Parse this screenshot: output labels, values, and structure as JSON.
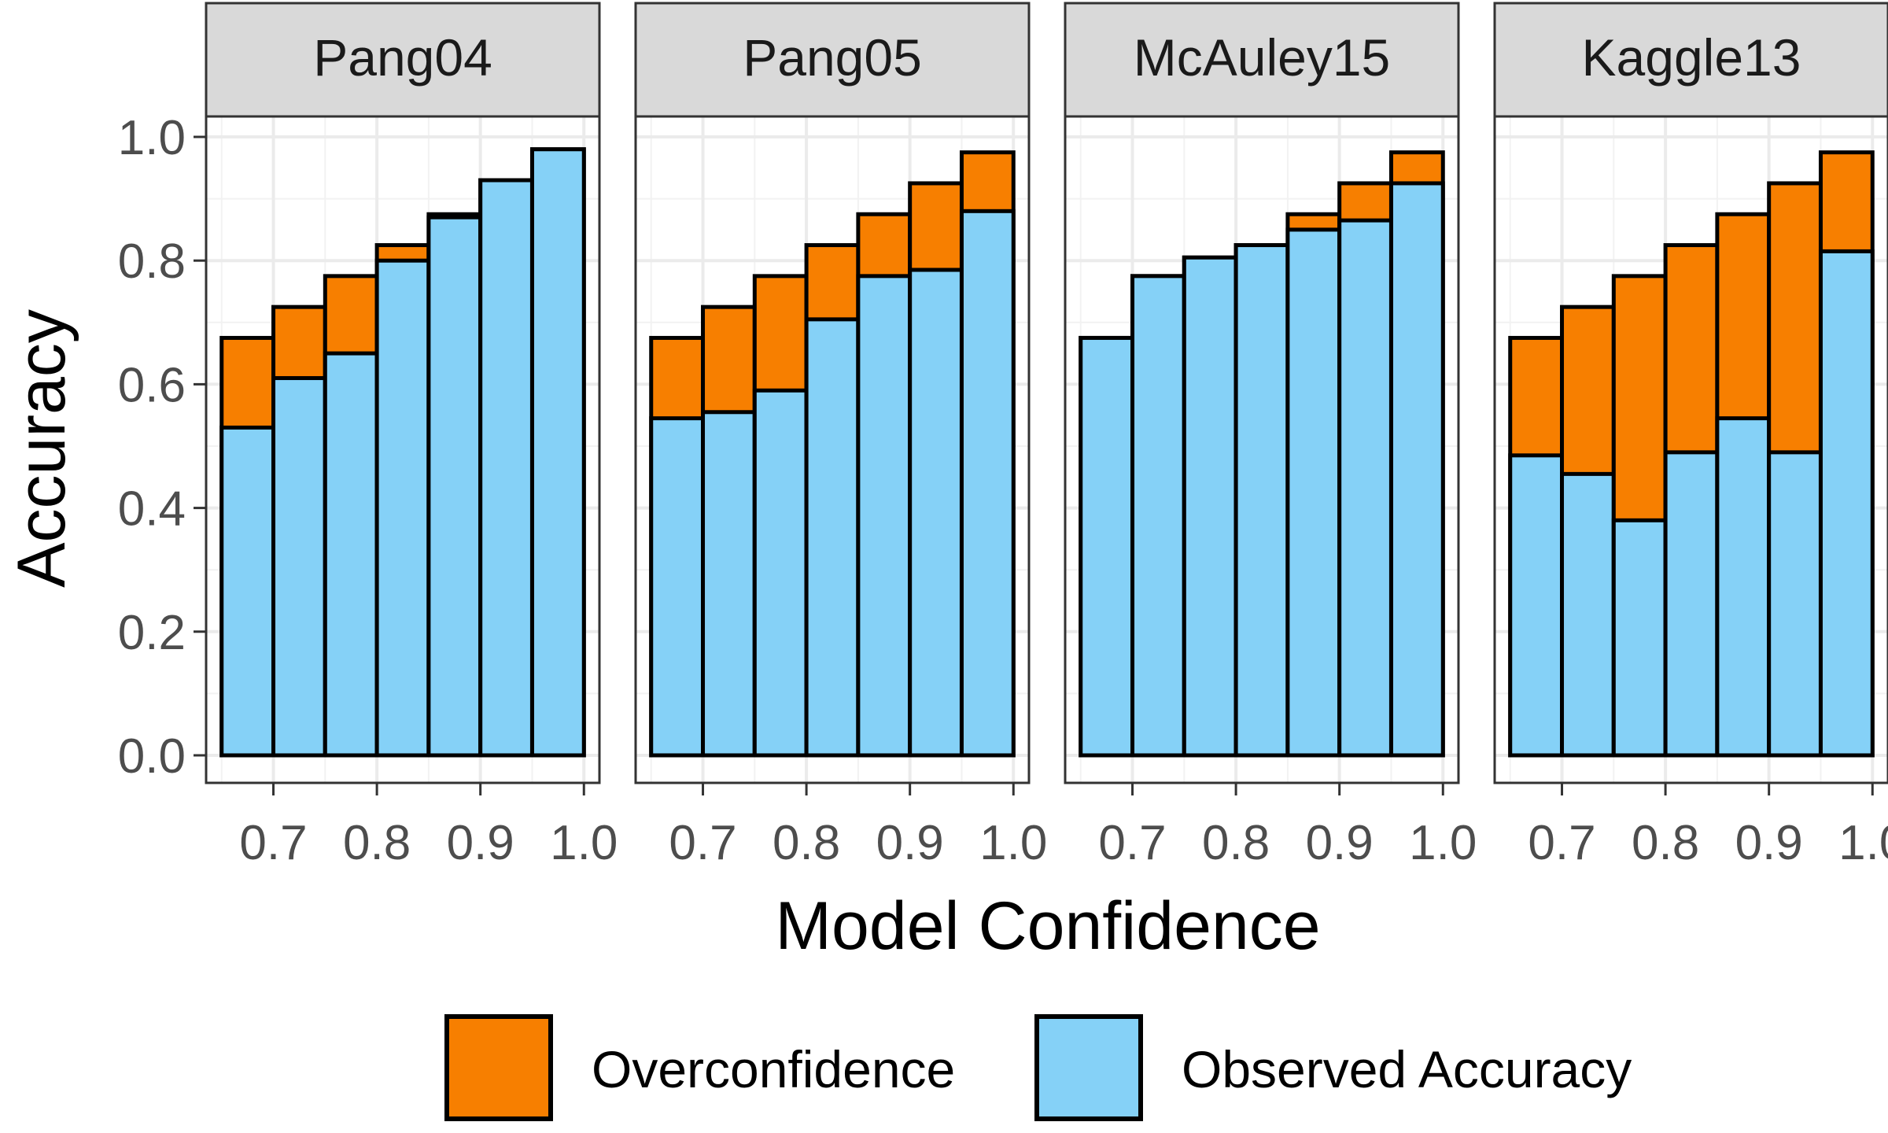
{
  "chart_data": {
    "type": "bar",
    "xlabel": "Model Confidence",
    "ylabel": "Accuracy",
    "ylim": [
      0,
      1.05
    ],
    "xlim": [
      0.635,
      1.015
    ],
    "x_ticks": [
      0.7,
      0.8,
      0.9,
      1.0
    ],
    "x_tick_labels": [
      "0.7",
      "0.8",
      "0.9",
      "1.0"
    ],
    "y_ticks": [
      0.0,
      0.2,
      0.4,
      0.6,
      0.8,
      1.0
    ],
    "y_tick_labels": [
      "0.0",
      "0.2",
      "0.4",
      "0.6",
      "0.8",
      "1.0"
    ],
    "grid": true,
    "legend_position": "bottom",
    "legend": [
      {
        "key": "over",
        "label": "Overconfidence",
        "color": "#F77F00"
      },
      {
        "key": "obs",
        "label": "Observed Accuracy",
        "color": "#85D1F7"
      }
    ],
    "bin_width": 0.05,
    "bin_centers": [
      0.675,
      0.725,
      0.775,
      0.825,
      0.875,
      0.925,
      0.975
    ],
    "panels": [
      {
        "title": "Pang04",
        "confidence": [
          0.675,
          0.725,
          0.775,
          0.825,
          0.875,
          0.925,
          0.98
        ],
        "observed": [
          0.53,
          0.61,
          0.65,
          0.8,
          0.87,
          0.93,
          0.98
        ]
      },
      {
        "title": "Pang05",
        "confidence": [
          0.675,
          0.725,
          0.775,
          0.825,
          0.875,
          0.925,
          0.975
        ],
        "observed": [
          0.545,
          0.555,
          0.59,
          0.705,
          0.775,
          0.785,
          0.88
        ]
      },
      {
        "title": "McAuley15",
        "confidence": [
          0.675,
          0.775,
          0.805,
          0.825,
          0.875,
          0.925,
          0.975
        ],
        "observed": [
          0.675,
          0.775,
          0.805,
          0.825,
          0.85,
          0.865,
          0.925
        ]
      },
      {
        "title": "Kaggle13",
        "confidence": [
          0.675,
          0.725,
          0.775,
          0.825,
          0.875,
          0.925,
          0.975
        ],
        "observed": [
          0.485,
          0.455,
          0.38,
          0.49,
          0.545,
          0.49,
          0.815
        ]
      }
    ]
  }
}
